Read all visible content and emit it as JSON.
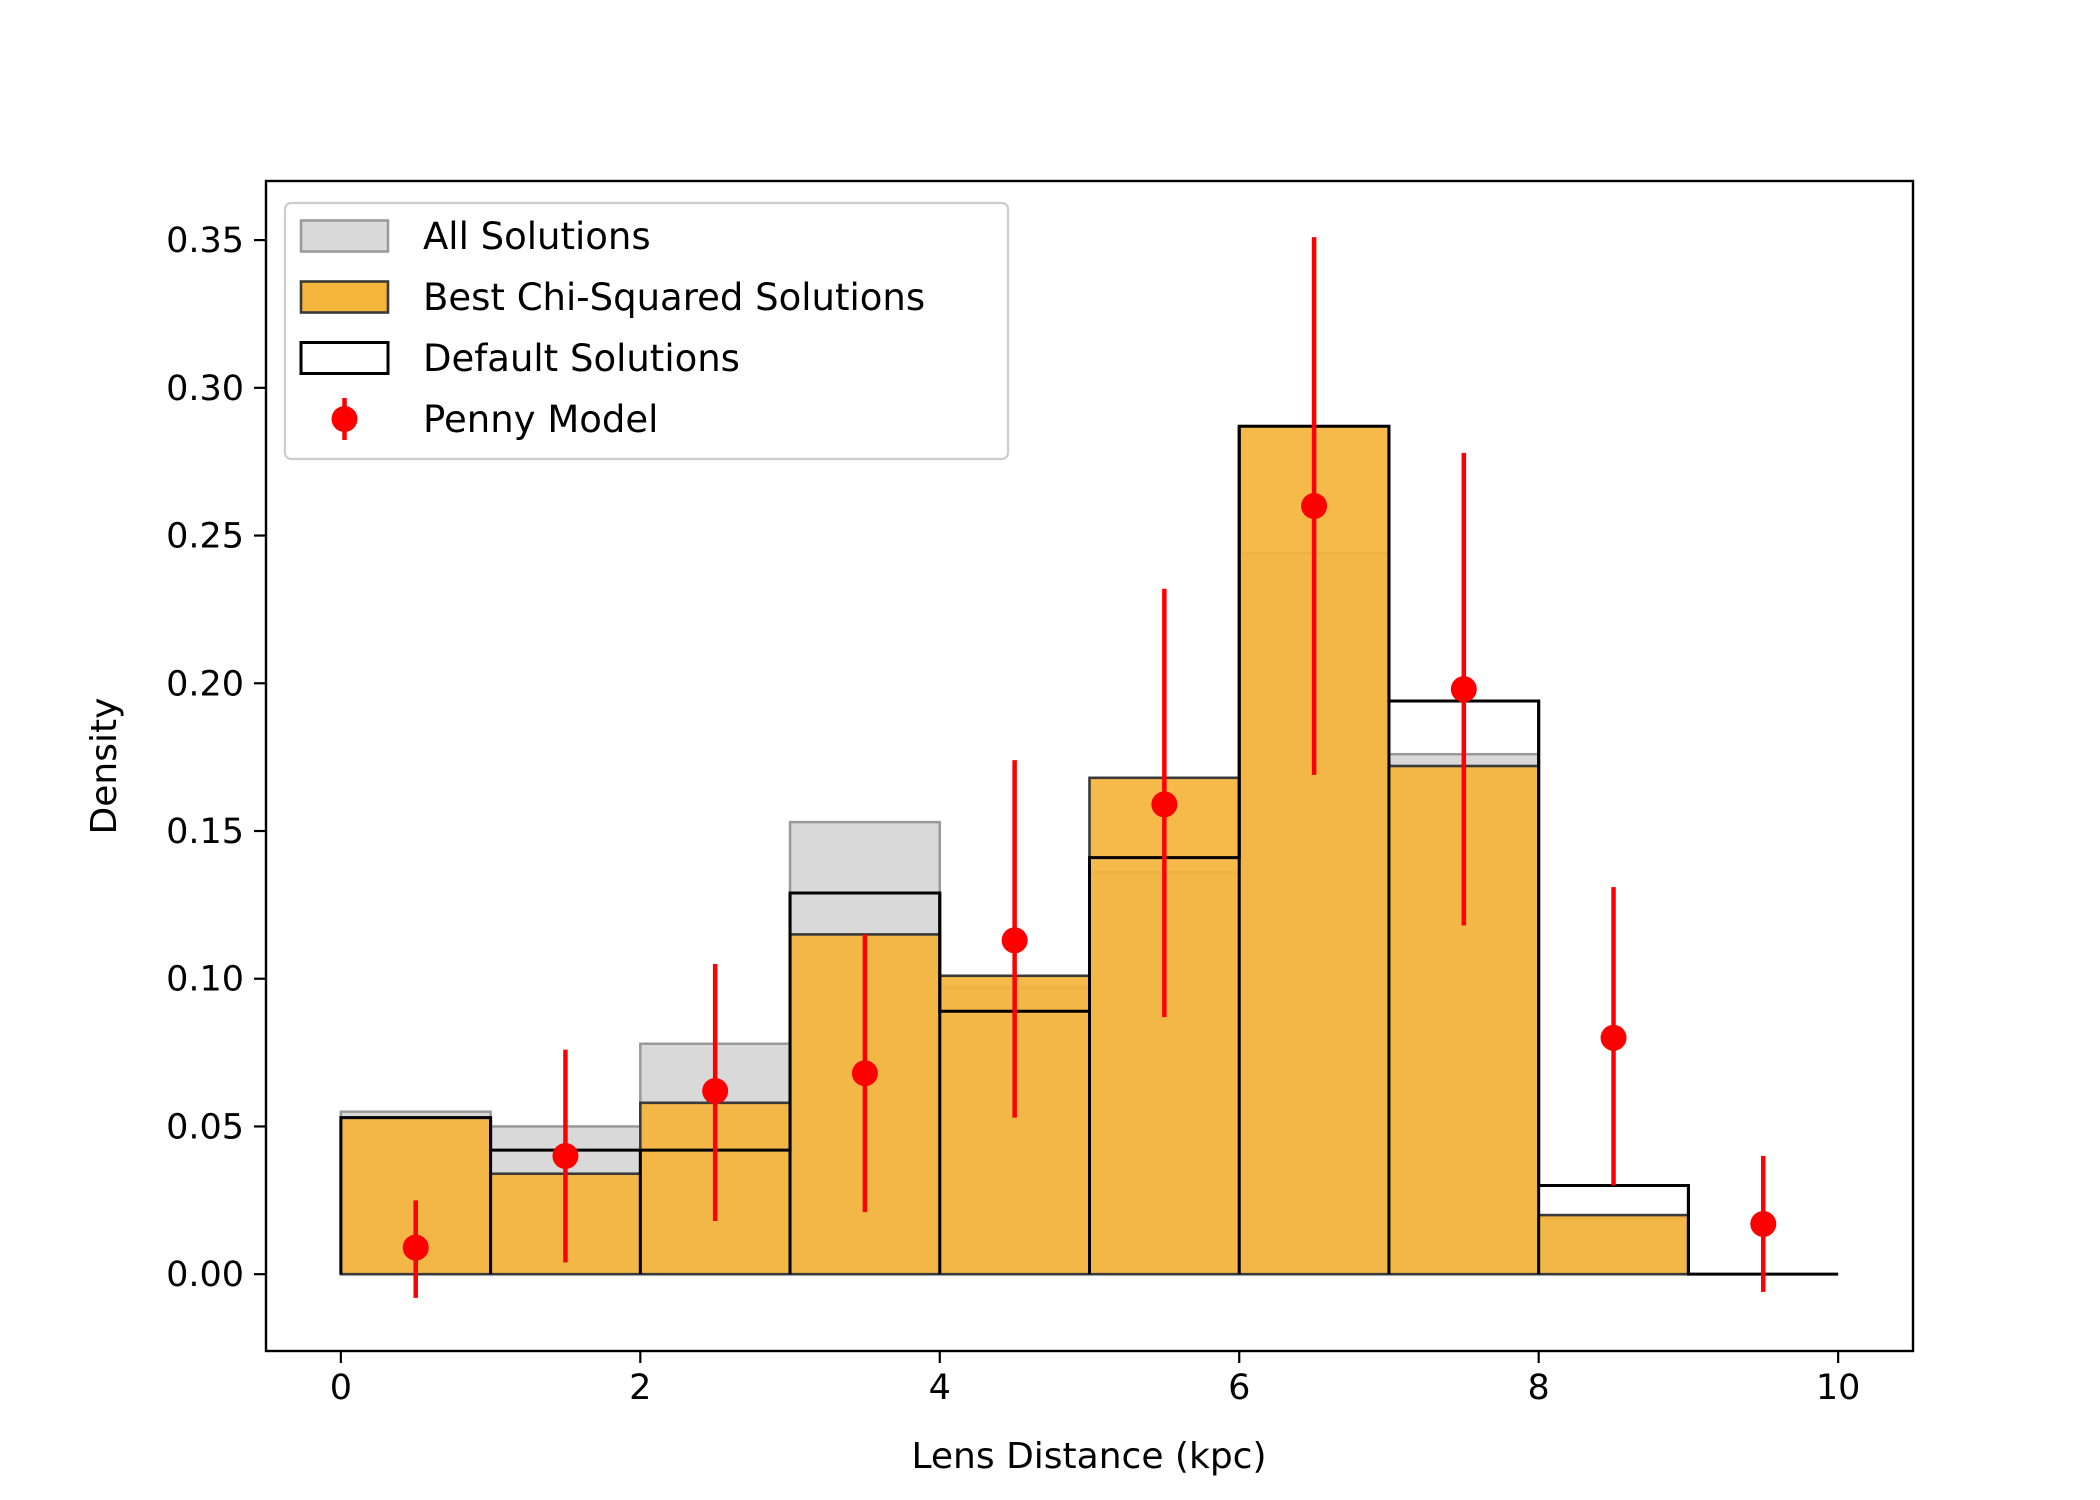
{
  "chart_data": {
    "type": "bar",
    "xlabel": "Lens Distance (kpc)",
    "ylabel": "Density",
    "xlim": [
      -0.5,
      10.5
    ],
    "ylim": [
      -0.026,
      0.37
    ],
    "xticks": [
      0,
      2,
      4,
      6,
      8,
      10
    ],
    "yticks": [
      0.0,
      0.05,
      0.1,
      0.15,
      0.2,
      0.25,
      0.3,
      0.35
    ],
    "ytick_labels": [
      "0.00",
      "0.05",
      "0.10",
      "0.15",
      "0.20",
      "0.25",
      "0.30",
      "0.35"
    ],
    "grid": false,
    "legend_position": "upper-left",
    "bin_edges": [
      0,
      1,
      2,
      3,
      4,
      5,
      6,
      7,
      8,
      9,
      10
    ],
    "series": [
      {
        "name": "All Solutions",
        "kind": "histogram-filled",
        "color": "#d9d9d9",
        "edge_color": "#999999",
        "values": [
          0.055,
          0.05,
          0.078,
          0.153,
          0.097,
          0.136,
          0.244,
          0.176,
          0.019,
          0.0
        ]
      },
      {
        "name": "Best Chi-Squared Solutions",
        "kind": "histogram-filled",
        "color": "#f5b43c",
        "edge_color": "#3a3a3a",
        "values": [
          0.053,
          0.034,
          0.058,
          0.115,
          0.101,
          0.168,
          0.287,
          0.172,
          0.02,
          0.0
        ]
      },
      {
        "name": "Default Solutions",
        "kind": "histogram-step",
        "color": "#000000",
        "values": [
          0.053,
          0.042,
          0.042,
          0.129,
          0.089,
          0.141,
          0.287,
          0.194,
          0.03,
          0.0
        ]
      },
      {
        "name": "Penny Model",
        "kind": "errorbar",
        "color": "#ff0000",
        "x": [
          0.5,
          1.5,
          2.5,
          3.5,
          4.5,
          5.5,
          6.5,
          7.5,
          8.5,
          9.5
        ],
        "y": [
          0.009,
          0.04,
          0.062,
          0.068,
          0.113,
          0.159,
          0.26,
          0.198,
          0.08,
          0.017
        ],
        "yerr_low": [
          0.017,
          0.036,
          0.044,
          0.047,
          0.06,
          0.072,
          0.091,
          0.08,
          0.05,
          0.023
        ],
        "yerr_high": [
          0.016,
          0.036,
          0.043,
          0.047,
          0.061,
          0.073,
          0.091,
          0.08,
          0.051,
          0.023
        ]
      }
    ]
  }
}
